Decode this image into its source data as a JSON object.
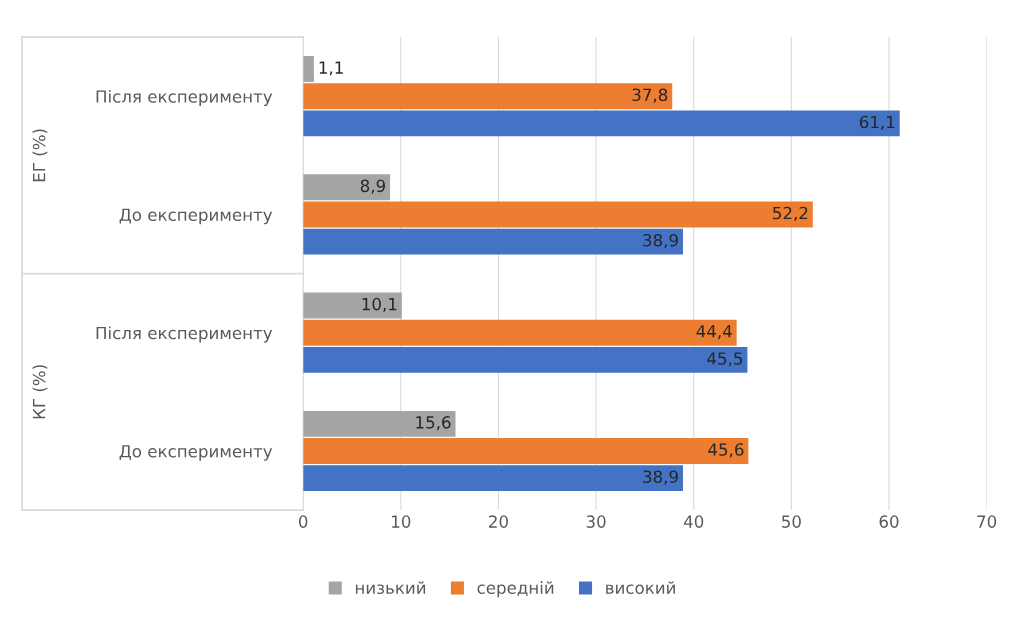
{
  "chart_data": {
    "type": "bar",
    "orientation": "horizontal",
    "categories": [
      "Після експерименту",
      "До експерименту",
      "Після експерименту",
      "До експерименту"
    ],
    "annotations": [
      "ЕГ (%)",
      "КГ (%)"
    ],
    "series": [
      {
        "name": "низький",
        "color": "#a5a5a5",
        "values": [
          1.1,
          8.9,
          10.1,
          15.6
        ],
        "value_labels": [
          "1,1",
          "8,9",
          "10,1",
          "15,6"
        ]
      },
      {
        "name": "середній",
        "color": "#ed7d31",
        "values": [
          37.8,
          52.2,
          44.4,
          45.6
        ],
        "value_labels": [
          "37,8",
          "52,2",
          "44,4",
          "45,6"
        ]
      },
      {
        "name": "високий",
        "color": "#4472c4",
        "values": [
          61.1,
          38.9,
          45.5,
          38.9
        ],
        "value_labels": [
          "61,1",
          "38,9",
          "45,5",
          "38,9"
        ]
      }
    ],
    "xlim": [
      0,
      70
    ],
    "xticks": [
      0,
      10,
      20,
      30,
      40,
      50,
      60,
      70
    ],
    "grid": "x",
    "legend": "bottom"
  }
}
